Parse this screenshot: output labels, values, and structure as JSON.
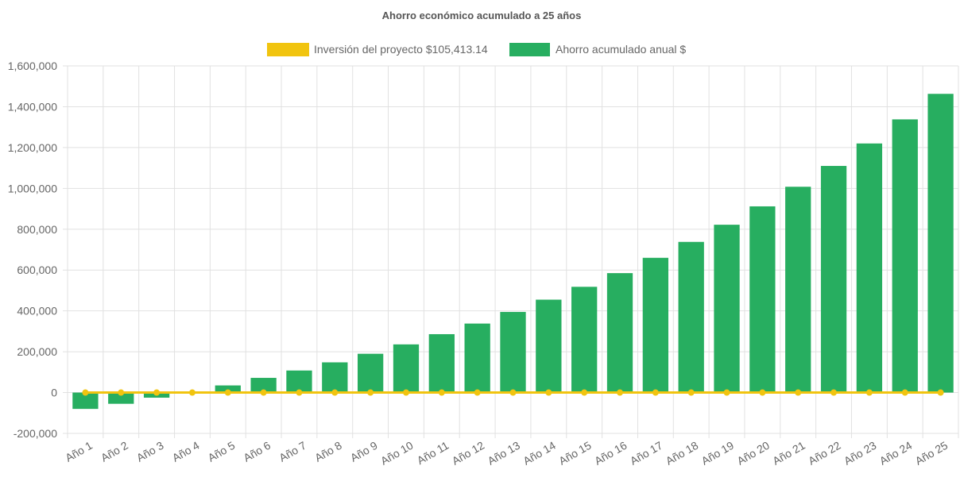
{
  "colors": {
    "investment": "#f1c40f",
    "savings": "#27ae60",
    "grid": "#e1e1e1",
    "text": "#666666",
    "title": "#555555"
  },
  "chart_data": {
    "type": "bar",
    "title": "Ahorro económico acumulado a 25 años",
    "legend_position": "top",
    "grid": true,
    "ylim": [
      -200000,
      1600000
    ],
    "yticks": [
      "1,600,000",
      "1,400,000",
      "1,200,000",
      "1,000,000",
      "800,000",
      "600,000",
      "400,000",
      "200,000",
      "0",
      "-200,000"
    ],
    "ytick_values": [
      1600000,
      1400000,
      1200000,
      1000000,
      800000,
      600000,
      400000,
      200000,
      0,
      -200000
    ],
    "categories": [
      "Año 1",
      "Año 2",
      "Año 3",
      "Año 4",
      "Año 5",
      "Año 6",
      "Año 7",
      "Año 8",
      "Año 9",
      "Año 10",
      "Año 11",
      "Año 12",
      "Año 13",
      "Año 14",
      "Año 15",
      "Año 16",
      "Año 17",
      "Año 18",
      "Año 19",
      "Año 20",
      "Año 21",
      "Año 22",
      "Año 23",
      "Año 24",
      "Año 25"
    ],
    "series": [
      {
        "name": "Inversión del proyecto $105,413.14",
        "type": "line",
        "values": [
          0,
          0,
          0,
          0,
          0,
          0,
          0,
          0,
          0,
          0,
          0,
          0,
          0,
          0,
          0,
          0,
          0,
          0,
          0,
          0,
          0,
          0,
          0,
          0,
          0
        ]
      },
      {
        "name": "Ahorro acumulado anual $",
        "type": "bar",
        "values": [
          -80000,
          -55000,
          -25000,
          0,
          35000,
          72000,
          108000,
          148000,
          190000,
          236000,
          286000,
          338000,
          395000,
          455000,
          518000,
          585000,
          660000,
          738000,
          822000,
          912000,
          1008000,
          1110000,
          1220000,
          1338000,
          1463000
        ]
      }
    ]
  }
}
